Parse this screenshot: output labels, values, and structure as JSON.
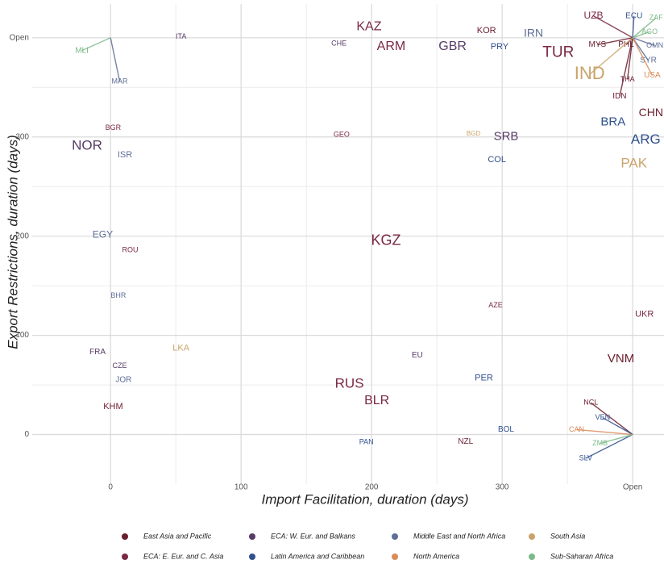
{
  "chart_data": {
    "type": "scatter",
    "x_label": "Import Facilitation, duration (days)",
    "y_label": "Export Restrictions, duration (days)",
    "xlim": [
      -60,
      424
    ],
    "ylim": [
      -50,
      434
    ],
    "xticks": [
      0,
      100,
      200,
      300,
      {
        "value": 400,
        "label": "Open"
      }
    ],
    "yticks": [
      0,
      100,
      200,
      300,
      {
        "value": 400,
        "label": "Open"
      }
    ],
    "grid": true,
    "legend": "bottom",
    "series": [
      {
        "name": "East Asia and Pacific",
        "color": "#6b1d2e",
        "labels": [
          "KHM",
          "IDN",
          "CHN",
          "THA",
          "MYS",
          "PHL",
          "VNM",
          "NZL",
          "NCL",
          "KOR"
        ],
        "x": [
          2,
          390,
          414,
          396,
          373,
          395,
          391,
          272,
          368,
          288
        ],
        "values": [
          28,
          341,
          324,
          358,
          393,
          393,
          76,
          -7,
          32,
          407
        ],
        "sizes": [
          11,
          10,
          14,
          9,
          10,
          10,
          15,
          10,
          9,
          11
        ]
      },
      {
        "name": "ECA: W. Eur. and Balkans",
        "color": "#573b66",
        "labels": [
          "NOR",
          "CHE",
          "GBR",
          "FRA",
          "ITA",
          "CZE",
          "SRB",
          "EU"
        ],
        "x": [
          -18,
          175,
          262,
          -10,
          54,
          7,
          303,
          235
        ],
        "values": [
          291,
          394,
          391,
          83,
          401,
          69,
          300,
          80
        ],
        "sizes": [
          17,
          9,
          16,
          10,
          9,
          9,
          15,
          10
        ]
      },
      {
        "name": "Middle East and North Africa",
        "color": "#5f6e96",
        "labels": [
          "ISR",
          "EGY",
          "MAR",
          "BHR",
          "JOR",
          "IRN",
          "SYR",
          "OMN"
        ],
        "x": [
          11,
          -6,
          7,
          6,
          10,
          324,
          412,
          417
        ],
        "values": [
          282,
          201,
          356,
          140,
          55,
          404,
          377,
          392
        ],
        "sizes": [
          11,
          12,
          9,
          9,
          10,
          14,
          10,
          9
        ]
      },
      {
        "name": "South Asia",
        "color": "#c9a46a",
        "labels": [
          "IND",
          "PAK",
          "LKA",
          "BGD"
        ],
        "x": [
          367,
          401,
          54,
          278
        ],
        "values": [
          363,
          273,
          87,
          303
        ],
        "sizes": [
          22,
          17,
          11,
          8
        ]
      },
      {
        "name": "ECA: E. Eur. and C. Asia",
        "color": "#7a2845",
        "labels": [
          "KAZ",
          "ARM",
          "KGZ",
          "RUS",
          "BLR",
          "TUR",
          "UZB",
          "GEO",
          "BGR",
          "ROU",
          "UKR",
          "AZE"
        ],
        "x": [
          198,
          215,
          211,
          183,
          204,
          343,
          370,
          177,
          2,
          15,
          409,
          295
        ],
        "values": [
          411,
          391,
          195,
          51,
          34,
          385,
          422,
          302,
          309,
          186,
          121,
          130
        ],
        "sizes": [
          16,
          16,
          18,
          17,
          16,
          19,
          12,
          9,
          9,
          9,
          11,
          9
        ]
      },
      {
        "name": "Latin America and Caribbean",
        "color": "#30508e",
        "labels": [
          "BRA",
          "ARG",
          "COL",
          "PER",
          "BOL",
          "PRY",
          "ECU",
          "PAN",
          "VEN",
          "SLV"
        ],
        "x": [
          385,
          410,
          296,
          286,
          303,
          298,
          401,
          196,
          377,
          364
        ],
        "values": [
          315,
          297,
          277,
          57,
          5,
          391,
          422,
          -8,
          17,
          -24
        ],
        "sizes": [
          15,
          17,
          11,
          11,
          10,
          11,
          10,
          9,
          9,
          9
        ]
      },
      {
        "name": "North America",
        "color": "#d98b5a",
        "labels": [
          "USA",
          "CAN"
        ],
        "x": [
          415,
          357
        ],
        "values": [
          362,
          5
        ],
        "sizes": [
          10,
          9
        ]
      },
      {
        "name": "Sub-Saharan Africa",
        "color": "#7dba8a",
        "labels": [
          "MLI",
          "ZMB",
          "AGO",
          "ZAF"
        ],
        "x": [
          -22,
          375,
          413,
          418
        ],
        "values": [
          387,
          -9,
          406,
          420
        ],
        "sizes": [
          10,
          9,
          9,
          9
        ]
      }
    ]
  }
}
